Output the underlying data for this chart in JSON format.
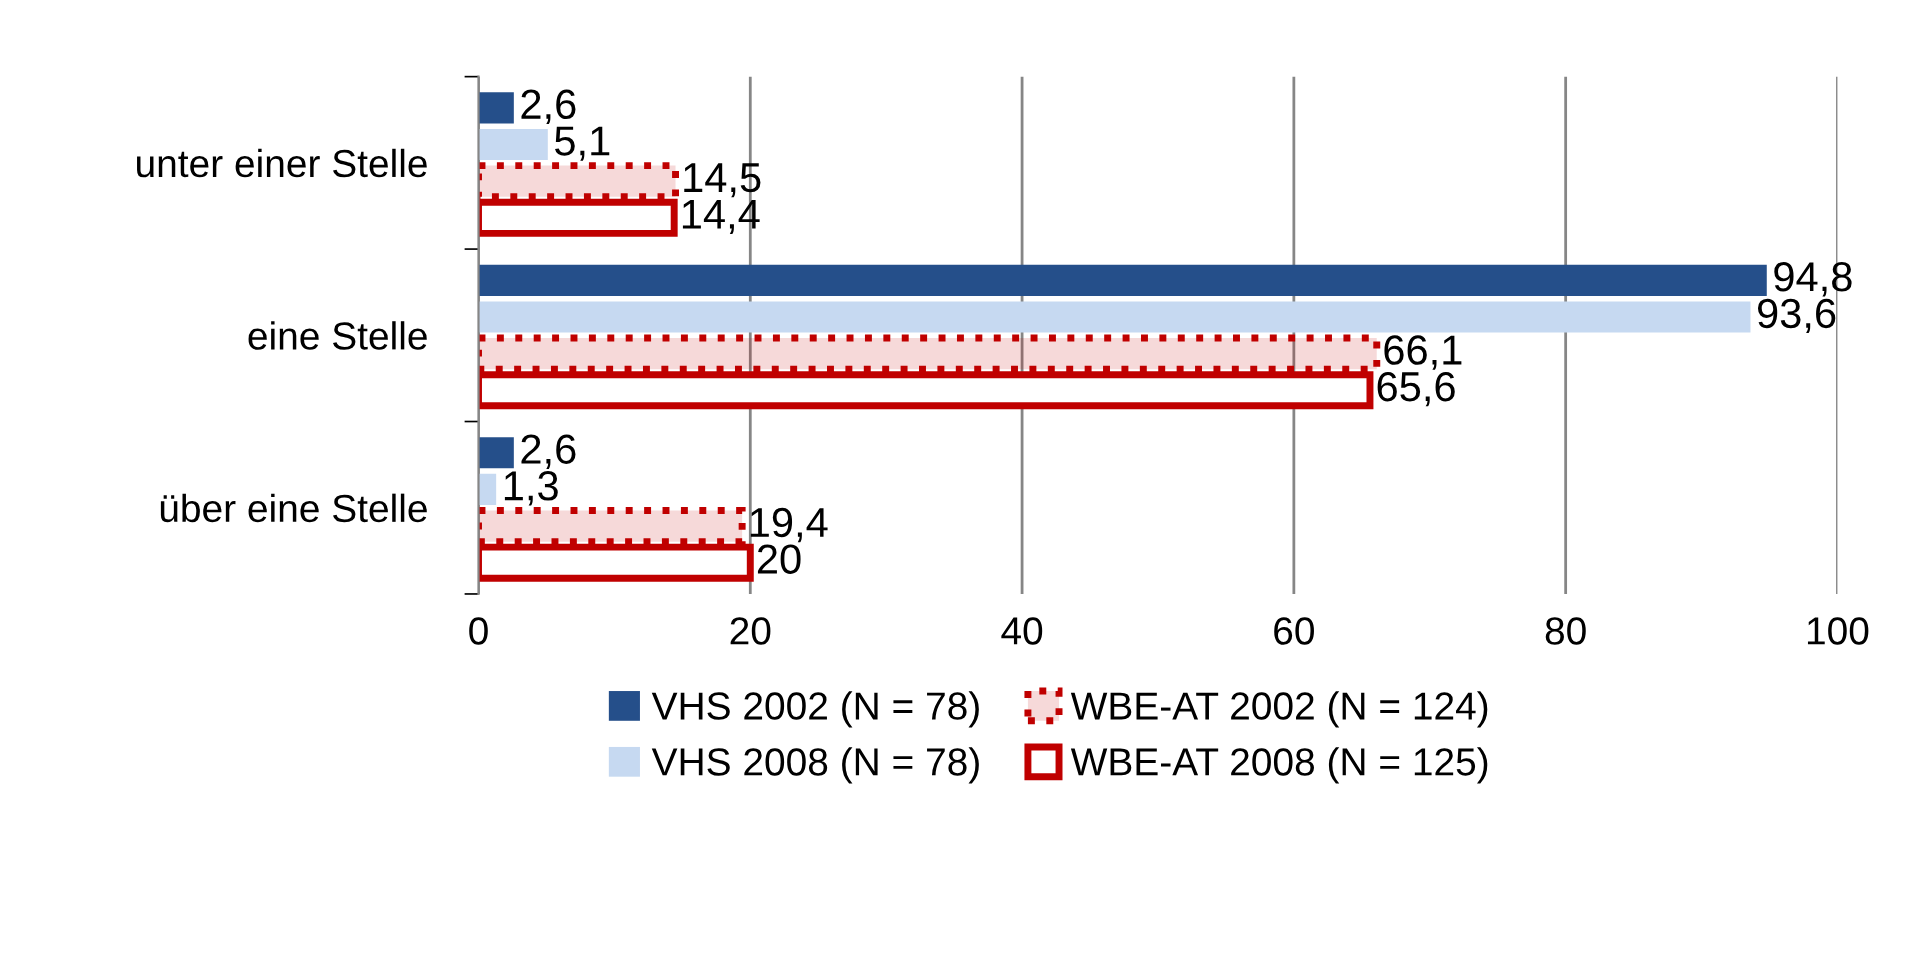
{
  "chart_data": {
    "type": "bar",
    "orientation": "horizontal",
    "categories": [
      "unter einer Stelle",
      "eine Stelle",
      "über eine Stelle"
    ],
    "series": [
      {
        "name": "VHS 2002 (N = 78)",
        "color": "#254f8a",
        "values": [
          2.6,
          94.8,
          2.6
        ],
        "value_labels": [
          "2,6",
          "94,8",
          "2,6"
        ]
      },
      {
        "name": "VHS 2008 (N = 78)",
        "color": "#c6d9f1",
        "values": [
          5.1,
          93.6,
          1.3
        ],
        "value_labels": [
          "5,1",
          "93,6",
          "1,3"
        ]
      },
      {
        "name": "WBE-AT 2002 (N = 124)",
        "color": "#c00000",
        "line_style": "dotted",
        "values": [
          14.5,
          66.1,
          19.4
        ],
        "value_labels": [
          "14,5",
          "66,1",
          "19,4"
        ]
      },
      {
        "name": "WBE-AT 2008 (N = 125)",
        "color": "#c00000",
        "line_style": "solid",
        "values": [
          14.4,
          65.6,
          20
        ],
        "value_labels": [
          "14,4",
          "65,6",
          "20"
        ]
      }
    ],
    "xlim": [
      0,
      100
    ],
    "xticks": [
      0,
      20,
      40,
      60,
      80,
      100
    ],
    "grid": "x",
    "legend": "bottom"
  }
}
